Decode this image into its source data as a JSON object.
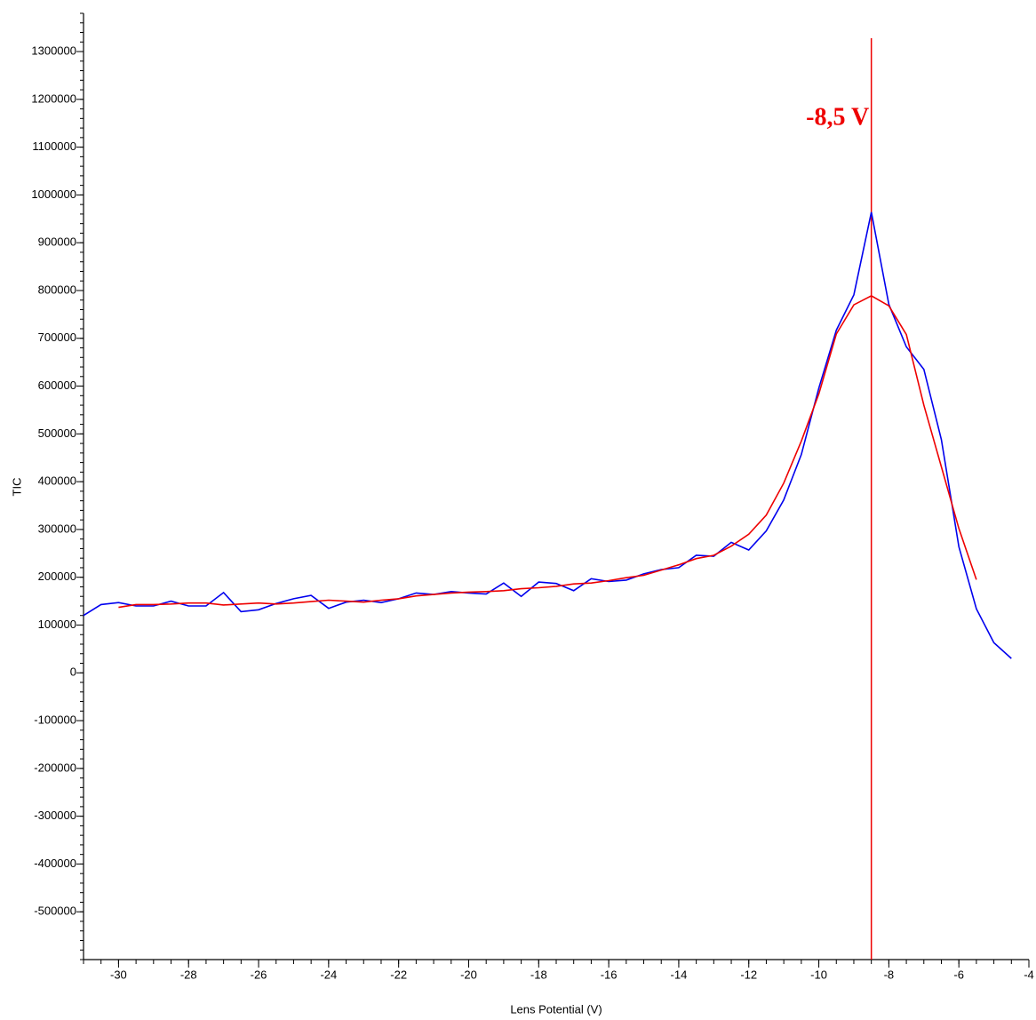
{
  "chart_data": {
    "type": "line",
    "x_label": "Lens Potential (V)",
    "y_label": "TIC",
    "xlim": [
      -31,
      -4
    ],
    "ylim": [
      -600000,
      1380000
    ],
    "xticks": [
      -30,
      -28,
      -26,
      -24,
      -22,
      -20,
      -18,
      -16,
      -14,
      -12,
      -10,
      -8,
      -6,
      -4
    ],
    "yticks": [
      -500000,
      -400000,
      -300000,
      -200000,
      -100000,
      0,
      100000,
      200000,
      300000,
      400000,
      500000,
      600000,
      700000,
      800000,
      900000,
      1000000,
      1100000,
      1200000,
      1300000
    ],
    "xminor": 0.5,
    "yminor": 20000,
    "series": [
      {
        "color": "#0000ee",
        "x": [
          -31,
          -30.5,
          -30,
          -29.5,
          -29,
          -28.5,
          -28,
          -27.5,
          -27,
          -26.5,
          -26,
          -25.5,
          -25,
          -24.5,
          -24,
          -23.5,
          -23,
          -22.5,
          -22,
          -21.5,
          -21,
          -20.5,
          -20,
          -19.5,
          -19,
          -18.5,
          -18,
          -17.5,
          -17,
          -16.5,
          -16,
          -15.5,
          -15,
          -14.5,
          -14,
          -13.5,
          -13,
          -12.5,
          -12,
          -11.5,
          -11,
          -10.5,
          -10,
          -9.5,
          -9,
          -8.5,
          -8,
          -7.5,
          -7,
          -6.5,
          -6,
          -5.5,
          -5,
          -4.5
        ],
        "values": [
          120000,
          143000,
          147000,
          140000,
          140000,
          150000,
          140000,
          140000,
          168000,
          128000,
          132000,
          145000,
          155000,
          162000,
          135000,
          148000,
          152000,
          147000,
          155000,
          167000,
          164000,
          170000,
          167000,
          165000,
          188000,
          160000,
          190000,
          187000,
          172000,
          197000,
          191000,
          194000,
          207000,
          216000,
          220000,
          246000,
          244000,
          273000,
          257000,
          297000,
          362000,
          457000,
          596000,
          717000,
          791000,
          964000,
          771000,
          682000,
          635000,
          488000,
          264000,
          134000,
          63000,
          30000
        ]
      },
      {
        "color": "#ee0000",
        "x": [
          -30,
          -29.5,
          -29,
          -28.5,
          -28,
          -27.5,
          -27,
          -26.5,
          -26,
          -25.5,
          -25,
          -24.5,
          -24,
          -23.5,
          -23,
          -22.5,
          -22,
          -21.5,
          -21,
          -20.5,
          -20,
          -19.5,
          -19,
          -18.5,
          -18,
          -17.5,
          -17,
          -16.5,
          -16,
          -15.5,
          -15,
          -14.5,
          -14,
          -13.5,
          -13,
          -12.5,
          -12,
          -11.5,
          -11,
          -10.5,
          -10,
          -9.5,
          -9,
          -8.5,
          -8,
          -7.5,
          -7,
          -6.5,
          -6,
          -5.5
        ],
        "values": [
          137000,
          143000,
          143000,
          144000,
          146000,
          146000,
          142000,
          144000,
          146000,
          144000,
          146000,
          149000,
          152000,
          150000,
          148000,
          152000,
          155000,
          161000,
          164000,
          167000,
          169000,
          170000,
          172000,
          176000,
          178000,
          181000,
          186000,
          188000,
          193000,
          199000,
          204000,
          215000,
          226000,
          239000,
          246000,
          265000,
          290000,
          330000,
          397000,
          485000,
          584000,
          709000,
          770000,
          789000,
          768000,
          708000,
          560000,
          431000,
          302000,
          195000
        ]
      }
    ],
    "annotation": {
      "text": "-8,5 V",
      "x": -8.5,
      "color": "#ee0000"
    }
  }
}
